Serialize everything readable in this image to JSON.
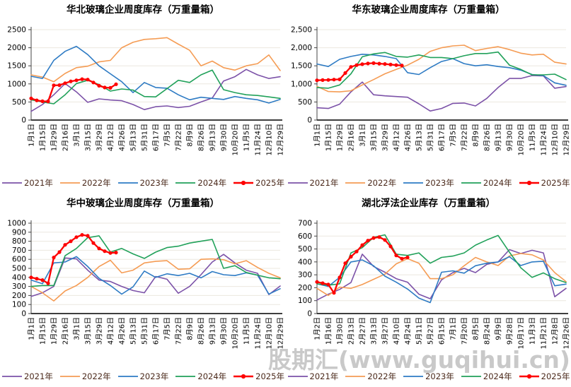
{
  "watermark": {
    "text": "股期汇(www.guqihui.cn)"
  },
  "palette": {
    "y2021": "#7C52A8",
    "y2022": "#F59C54",
    "y2023": "#2E7BC4",
    "y2024": "#21A15A",
    "y2025": "#FE0000",
    "grid": "#ebe7df",
    "axis": "#222222",
    "legend_text": "#4a281a"
  },
  "chart_data": [
    {
      "id": "huabei",
      "title": "华北玻璃企业周度库存（万重量箱）",
      "type": "line",
      "ylim": [
        0,
        2500
      ],
      "ystep": 500,
      "grid": "on",
      "legend_position": "bottom",
      "y_tick_labels": [
        "0",
        "500",
        "1000",
        "1500",
        "2000",
        "2500"
      ],
      "categories": [
        "1月1日",
        "1月15日",
        "1月29日",
        "2月16日",
        "3月1日",
        "3月15日",
        "3月29日",
        "4月12日",
        "4月26日",
        "5月13日",
        "5月31日",
        "6月17日",
        "7月5日",
        "7月22日",
        "8月9日",
        "8月26日",
        "9月13日",
        "9月30日",
        "10月20日",
        "11月5日",
        "11月24日",
        "12月10日",
        "12月29日"
      ],
      "series": [
        {
          "name": "2021年",
          "color_key": "y2021",
          "values": [
            240,
            430,
            700,
            1010,
            780,
            490,
            585,
            555,
            535,
            430,
            290,
            370,
            390,
            345,
            380,
            500,
            610,
            1080,
            1200,
            1400,
            1250,
            1150,
            1200
          ]
        },
        {
          "name": "2022年",
          "color_key": "y2022",
          "values": [
            1250,
            1190,
            1060,
            1290,
            1450,
            1490,
            1610,
            1650,
            2000,
            2150,
            2230,
            2250,
            2280,
            2100,
            1930,
            1500,
            1630,
            1450,
            1380,
            1500,
            1560,
            1800,
            1370
          ]
        },
        {
          "name": "2023年",
          "color_key": "y2023",
          "values": [
            1210,
            1150,
            1650,
            1900,
            2040,
            1810,
            1500,
            1280,
            1060,
            760,
            1040,
            900,
            880,
            700,
            560,
            630,
            600,
            570,
            650,
            600,
            560,
            470,
            570
          ]
        },
        {
          "name": "2024年",
          "color_key": "y2024",
          "values": [
            560,
            500,
            450,
            700,
            1010,
            1100,
            980,
            800,
            860,
            830,
            650,
            640,
            870,
            1100,
            1040,
            1250,
            1380,
            840,
            760,
            700,
            680,
            640,
            600
          ]
        },
        {
          "name": "2025年",
          "color_key": "y2025",
          "marker": true,
          "x": [
            0,
            0.5,
            1,
            1.5,
            2,
            2.5,
            3,
            3.5,
            4,
            4.5,
            5,
            5.5,
            6,
            6.5,
            7,
            7.5
          ],
          "values": [
            600,
            545,
            520,
            515,
            960,
            965,
            1020,
            1070,
            1100,
            1130,
            1120,
            1040,
            950,
            900,
            890,
            990
          ]
        }
      ]
    },
    {
      "id": "huadong",
      "title": "华东玻璃企业周度库存（万重量箱）",
      "type": "line",
      "ylim": [
        0,
        2500
      ],
      "ystep": 500,
      "grid": "on",
      "legend_position": "bottom",
      "y_tick_labels": [
        "0",
        "500",
        "1,000",
        "1,500",
        "2,000",
        "2,500"
      ],
      "categories": [
        "1月1日",
        "1月15日",
        "1月29日",
        "2月16日",
        "3月1日",
        "3月15日",
        "3月29日",
        "4月12日",
        "4月26日",
        "5月13日",
        "5月31日",
        "6月17日",
        "7月5日",
        "7月22日",
        "8月9日",
        "8月26日",
        "9月13日",
        "9月30日",
        "10月20日",
        "11月5日",
        "11月24日",
        "12月10日",
        "12月29日"
      ],
      "series": [
        {
          "name": "2021年",
          "color_key": "y2021",
          "values": [
            340,
            320,
            440,
            780,
            1050,
            700,
            670,
            650,
            630,
            450,
            250,
            320,
            460,
            470,
            390,
            600,
            900,
            1150,
            1150,
            1230,
            1220,
            880,
            925
          ]
        },
        {
          "name": "2022年",
          "color_key": "y2022",
          "values": [
            930,
            790,
            780,
            810,
            970,
            1120,
            1280,
            1400,
            1520,
            1680,
            1900,
            2000,
            2050,
            2070,
            1920,
            1980,
            2030,
            1950,
            1850,
            1800,
            1820,
            1600,
            1550
          ]
        },
        {
          "name": "2023年",
          "color_key": "y2023",
          "values": [
            1550,
            1480,
            1680,
            1760,
            1820,
            1800,
            1760,
            1700,
            1310,
            1260,
            1450,
            1620,
            1700,
            1560,
            1500,
            1530,
            1480,
            1450,
            1380,
            1260,
            1230,
            1030,
            960
          ]
        },
        {
          "name": "2024年",
          "color_key": "y2024",
          "values": [
            900,
            880,
            970,
            1280,
            1750,
            1830,
            1870,
            1760,
            1740,
            1800,
            1730,
            1730,
            1700,
            1780,
            1840,
            1840,
            1880,
            1520,
            1400,
            1250,
            1250,
            1270,
            1120
          ]
        },
        {
          "name": "2025年",
          "color_key": "y2025",
          "marker": true,
          "x": [
            0,
            0.5,
            1,
            1.5,
            2,
            2.5,
            3,
            3.5,
            4,
            4.5,
            5,
            5.5,
            6,
            6.5,
            7,
            7.5
          ],
          "values": [
            1100,
            1105,
            1110,
            1120,
            1125,
            1300,
            1470,
            1520,
            1545,
            1565,
            1575,
            1560,
            1550,
            1535,
            1520,
            1510
          ]
        }
      ]
    },
    {
      "id": "huazhong",
      "title": "华中玻璃企业周度库存（万重量箱）",
      "type": "line",
      "ylim": [
        0,
        1000
      ],
      "ystep": 100,
      "grid": "on",
      "legend_position": "bottom",
      "y_tick_labels": [
        "0",
        "100",
        "200",
        "300",
        "400",
        "500",
        "600",
        "700",
        "800",
        "900",
        "1000"
      ],
      "categories": [
        "1月1日",
        "1月15日",
        "1月29日",
        "2月16日",
        "3月1日",
        "3月15日",
        "3月29日",
        "4月12日",
        "4月26日",
        "5月13日",
        "5月31日",
        "6月17日",
        "7月5日",
        "7月22日",
        "8月9日",
        "8月26日",
        "9月13日",
        "9月30日",
        "10月20日",
        "11月5日",
        "11月24日",
        "12月10日",
        "12月29日"
      ],
      "series": [
        {
          "name": "2021年",
          "color_key": "y2021",
          "values": [
            190,
            230,
            300,
            615,
            605,
            480,
            370,
            355,
            300,
            255,
            230,
            410,
            380,
            225,
            300,
            430,
            570,
            655,
            560,
            480,
            445,
            210,
            305
          ]
        },
        {
          "name": "2022年",
          "color_key": "y2022",
          "values": [
            300,
            230,
            140,
            250,
            310,
            400,
            520,
            590,
            450,
            480,
            560,
            577,
            585,
            490,
            495,
            600,
            605,
            595,
            550,
            585,
            510,
            445,
            395
          ]
        },
        {
          "name": "2023年",
          "color_key": "y2023",
          "values": [
            370,
            330,
            560,
            570,
            630,
            520,
            390,
            310,
            215,
            295,
            470,
            400,
            440,
            420,
            445,
            395,
            465,
            430,
            420,
            450,
            425,
            215,
            275
          ]
        },
        {
          "name": "2024年",
          "color_key": "y2024",
          "values": [
            300,
            310,
            310,
            640,
            720,
            840,
            860,
            680,
            720,
            660,
            610,
            680,
            730,
            745,
            780,
            800,
            820,
            500,
            530,
            455,
            425,
            395,
            385
          ]
        },
        {
          "name": "2025年",
          "color_key": "y2025",
          "marker": true,
          "x": [
            0,
            0.5,
            1,
            1.5,
            2,
            2.5,
            3,
            3.5,
            4,
            4.5,
            5,
            5.5,
            6,
            6.5,
            7,
            7.5
          ],
          "values": [
            400,
            385,
            370,
            335,
            620,
            680,
            760,
            800,
            845,
            870,
            860,
            780,
            720,
            690,
            670,
            675
          ]
        }
      ]
    },
    {
      "id": "hubei",
      "title": "湖北浮法企业库存（万重量箱）",
      "type": "line",
      "ylim": [
        0,
        700
      ],
      "ystep": 100,
      "grid": "on",
      "legend_position": "bottom",
      "y_tick_labels": [
        "0",
        "100",
        "200",
        "300",
        "400",
        "500",
        "600",
        "700"
      ],
      "categories": [
        "1月2日",
        "1月16日",
        "1月30日",
        "2月13日",
        "2月27日",
        "3月13日",
        "3月27日",
        "4月10日",
        "4月24日",
        "5月11日",
        "5月27日",
        "6月15日",
        "7月1日",
        "7月20日",
        "8月5日",
        "8月24日",
        "9月9日",
        "9月28日",
        "10月17日",
        "11月3日",
        "11月21日",
        "12月8日",
        "12月26日"
      ],
      "series": [
        {
          "name": "2021年",
          "color_key": "y2021",
          "values": [
            105,
            150,
            187,
            240,
            460,
            365,
            320,
            270,
            243,
            150,
            115,
            261,
            317,
            350,
            317,
            381,
            400,
            495,
            465,
            490,
            470,
            130,
            195
          ]
        },
        {
          "name": "2022年",
          "color_key": "y2022",
          "values": [
            195,
            140,
            205,
            195,
            225,
            265,
            305,
            385,
            425,
            390,
            270,
            270,
            300,
            370,
            435,
            400,
            372,
            446,
            465,
            455,
            415,
            317,
            248
          ]
        },
        {
          "name": "2023年",
          "color_key": "y2023",
          "values": [
            230,
            210,
            280,
            400,
            415,
            370,
            290,
            243,
            190,
            120,
            85,
            320,
            331,
            313,
            370,
            390,
            400,
            440,
            372,
            400,
            405,
            215,
            228
          ]
        },
        {
          "name": "2024年",
          "color_key": "y2024",
          "values": [
            230,
            220,
            230,
            470,
            510,
            590,
            610,
            460,
            450,
            470,
            390,
            435,
            445,
            470,
            530,
            570,
            605,
            475,
            355,
            280,
            315,
            270,
            240
          ]
        },
        {
          "name": "2025年",
          "color_key": "y2025",
          "marker": true,
          "x": [
            0,
            0.5,
            1,
            1.5,
            2,
            2.5,
            3,
            3.5,
            4,
            4.5,
            5,
            5.5,
            6,
            6.5,
            7,
            7.5,
            8
          ],
          "values": [
            245,
            235,
            225,
            160,
            280,
            390,
            440,
            480,
            530,
            565,
            585,
            592,
            570,
            520,
            450,
            425,
            435
          ]
        }
      ]
    }
  ]
}
